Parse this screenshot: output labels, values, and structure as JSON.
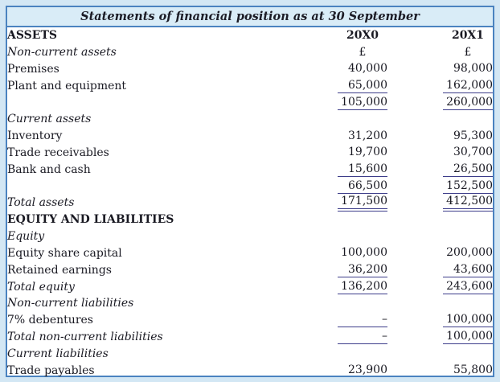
{
  "title": "Statements of financial position as at 30 September",
  "columns": [
    "20X0",
    "20X1"
  ],
  "currency_symbol": "£",
  "rows": [
    {
      "label": "ASSETS",
      "label_style": "bold",
      "v0": "20X0",
      "v1": "20X1",
      "align": "center",
      "value_bold": true,
      "rule": "none"
    },
    {
      "label": "Non-current assets",
      "label_style": "italic",
      "v0": "£",
      "v1": "£",
      "align": "center",
      "value_bold": false,
      "rule": "none"
    },
    {
      "label": "Premises",
      "label_style": "normal",
      "v0": "40,000",
      "v1": "98,000",
      "align": "right",
      "value_bold": false,
      "rule": "none"
    },
    {
      "label": "Plant and equipment",
      "label_style": "normal",
      "v0": "65,000",
      "v1": "162,000",
      "align": "right",
      "value_bold": false,
      "rule": "single"
    },
    {
      "label": "",
      "label_style": "normal",
      "v0": "105,000",
      "v1": "260,000",
      "align": "right",
      "value_bold": false,
      "rule": "single"
    },
    {
      "label": "Current assets",
      "label_style": "italic",
      "v0": "",
      "v1": "",
      "align": "right",
      "value_bold": false,
      "rule": "none"
    },
    {
      "label": "Inventory",
      "label_style": "normal",
      "v0": "31,200",
      "v1": "95,300",
      "align": "right",
      "value_bold": false,
      "rule": "none"
    },
    {
      "label": "Trade receivables",
      "label_style": "normal",
      "v0": "19,700",
      "v1": "30,700",
      "align": "right",
      "value_bold": false,
      "rule": "none"
    },
    {
      "label": "Bank and cash",
      "label_style": "normal",
      "v0": "15,600",
      "v1": "26,500",
      "align": "right",
      "value_bold": false,
      "rule": "single"
    },
    {
      "label": "",
      "label_style": "normal",
      "v0": "66,500",
      "v1": "152,500",
      "align": "right",
      "value_bold": false,
      "rule": "single"
    },
    {
      "label": "Total assets",
      "label_style": "italic",
      "v0": "171,500",
      "v1": "412,500",
      "align": "right",
      "value_bold": false,
      "rule": "double"
    },
    {
      "label": "EQUITY AND LIABILITIES",
      "label_style": "bold",
      "v0": "",
      "v1": "",
      "align": "right",
      "value_bold": false,
      "rule": "none"
    },
    {
      "label": "Equity",
      "label_style": "italic",
      "v0": "",
      "v1": "",
      "align": "right",
      "value_bold": false,
      "rule": "none"
    },
    {
      "label": "Equity share capital",
      "label_style": "normal",
      "v0": "100,000",
      "v1": "200,000",
      "align": "right",
      "value_bold": false,
      "rule": "none"
    },
    {
      "label": "Retained earnings",
      "label_style": "normal",
      "v0": "36,200",
      "v1": "43,600",
      "align": "right",
      "value_bold": false,
      "rule": "single"
    },
    {
      "label": "Total equity",
      "label_style": "italic",
      "v0": "136,200",
      "v1": "243,600",
      "align": "right",
      "value_bold": false,
      "rule": "single"
    },
    {
      "label": "Non-current liabilities",
      "label_style": "italic",
      "v0": "",
      "v1": "",
      "align": "right",
      "value_bold": false,
      "rule": "none"
    },
    {
      "label": "7% debentures",
      "label_style": "normal",
      "v0": "–",
      "v1": "100,000",
      "align": "right",
      "value_bold": false,
      "rule": "single"
    },
    {
      "label": "Total non-current liabilities",
      "label_style": "italic",
      "v0": "–",
      "v1": "100,000",
      "align": "right",
      "value_bold": false,
      "rule": "single"
    },
    {
      "label": "Current liabilities",
      "label_style": "italic",
      "v0": "",
      "v1": "",
      "align": "right",
      "value_bold": false,
      "rule": "none"
    },
    {
      "label": "Trade payables",
      "label_style": "normal",
      "v0": "23,900",
      "v1": "55,800",
      "align": "right",
      "value_bold": false,
      "rule": "none"
    }
  ]
}
